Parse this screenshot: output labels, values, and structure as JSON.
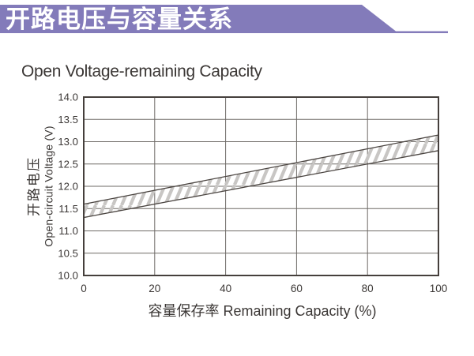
{
  "header": {
    "title": "开路电压与容量关系",
    "banner_color": "#837BBA"
  },
  "chart": {
    "title": "Open Voltage-remaining Capacity"
  },
  "chart_data": {
    "type": "area",
    "title": "Open Voltage-remaining Capacity",
    "xlabel": "容量保存率 Remaining Capacity (%)",
    "ylabel_cn": "开路电压",
    "ylabel_en": "Open-circuit Voltage (V)",
    "xlim": [
      0,
      100
    ],
    "ylim": [
      10.0,
      14.0
    ],
    "xticks": [
      0,
      20,
      40,
      60,
      80,
      100
    ],
    "yticks": [
      14.0,
      13.5,
      13.0,
      12.5,
      12.0,
      11.5,
      11.0,
      10.5,
      10.0
    ],
    "ytick_labels": [
      "14.0",
      "13.5",
      "13.0",
      "12.5",
      "12.0",
      "11.5",
      "11.0",
      "10.5",
      "10.0"
    ],
    "grid": true,
    "legend": "none",
    "band_fill": "diagonal-hatch",
    "series": [
      {
        "name": "upper-bound",
        "x": [
          0,
          100
        ],
        "y": [
          11.6,
          13.15
        ]
      },
      {
        "name": "lower-bound",
        "x": [
          0,
          100
        ],
        "y": [
          11.3,
          12.8
        ]
      }
    ],
    "colors": {
      "border": "#453f3c",
      "grid": "#6e6a66",
      "band_line": "#4a4440",
      "hatch": "#c8c6c4",
      "text": "#3b3735"
    }
  }
}
